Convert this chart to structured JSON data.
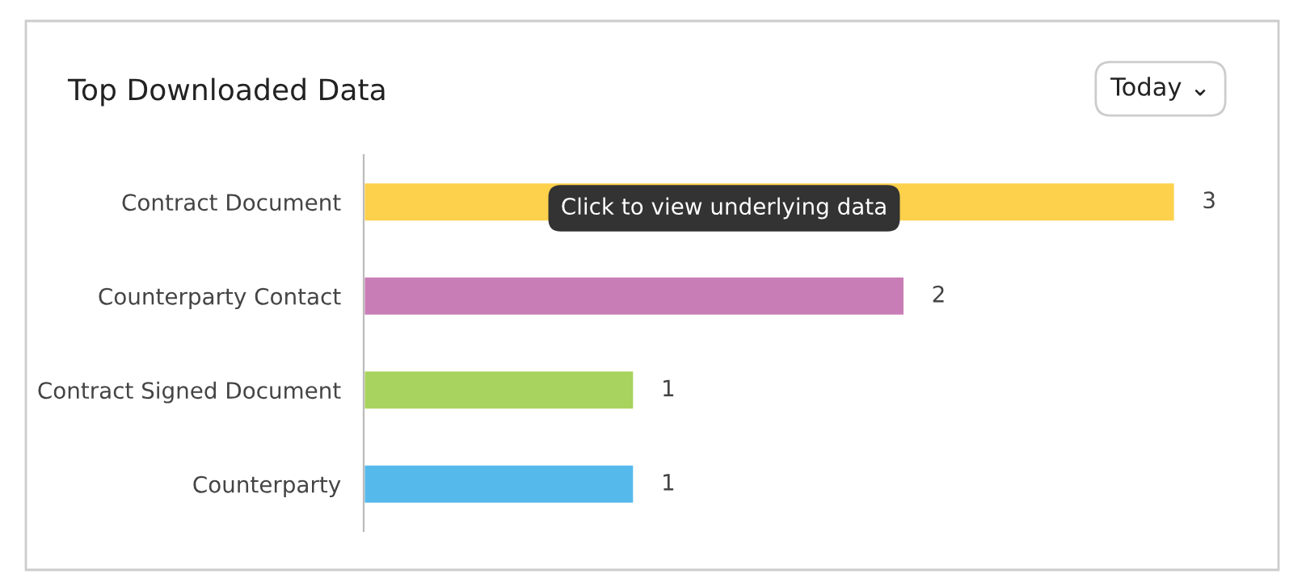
{
  "chart_data": {
    "type": "bar",
    "orientation": "horizontal",
    "title": "Top Downloaded Data",
    "categories": [
      "Contract Document",
      "Counterparty Contact",
      "Contract Signed Document",
      "Counterparty"
    ],
    "values": [
      3,
      2,
      1,
      1
    ],
    "colors": [
      "#fdd14b",
      "#c97db6",
      "#a8d35e",
      "#56b9ec"
    ],
    "data_labels": true,
    "annotations": [
      "Today ⌄",
      "Click to view underlying data"
    ]
  }
}
